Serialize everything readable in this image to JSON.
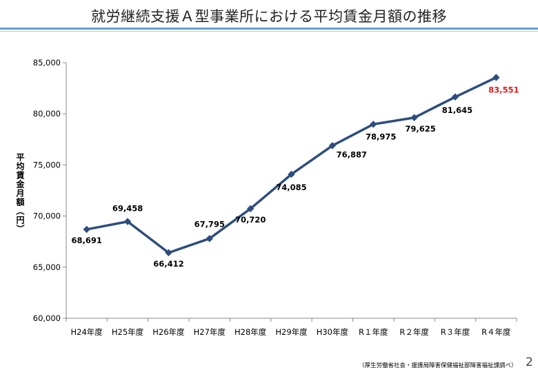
{
  "slide": {
    "title": "就労継続支援Ａ型事業所における平均賃金月額の推移",
    "source": "（厚生労働省社会・援護局障害保健福祉部障害福祉課調べ）",
    "page_number": "2"
  },
  "chart_data": {
    "type": "line",
    "title": "",
    "xlabel": "",
    "ylabel": "平均賃金月額（円）",
    "categories": [
      "H24年度",
      "H25年度",
      "H26年度",
      "H27年度",
      "H28年度",
      "H29年度",
      "H30年度",
      "R１年度",
      "R２年度",
      "R３年度",
      "R４年度"
    ],
    "series": [
      {
        "values": [
          68691,
          69458,
          66412,
          67795,
          70720,
          74085,
          76887,
          78975,
          79625,
          81645,
          83551
        ],
        "data_labels": [
          "68,691",
          "69,458",
          "66,412",
          "67,795",
          "70,720",
          "74,085",
          "76,887",
          "78,975",
          "79,625",
          "81,645",
          "83,551"
        ],
        "color": "#2d4d7d"
      }
    ],
    "highlight_color": "#e8191b",
    "ylim": [
      60000,
      85000
    ],
    "yticks": [
      60000,
      65000,
      70000,
      75000,
      80000,
      85000
    ],
    "ytick_labels": [
      "60,000",
      "65,000",
      "70,000",
      "75,000",
      "80,000",
      "85,000"
    ],
    "grid": false,
    "legend": "none",
    "marker": "diamond"
  }
}
